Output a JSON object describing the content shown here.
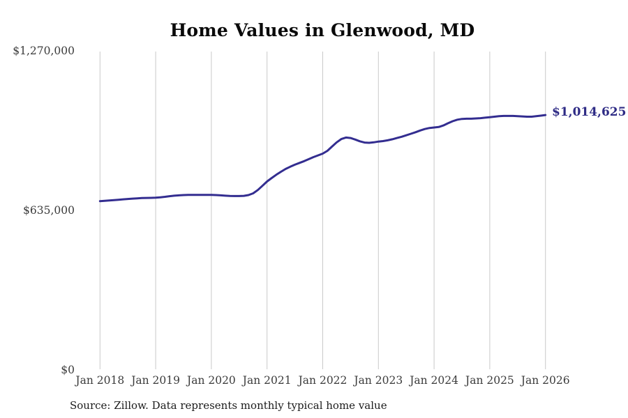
{
  "chart": {
    "title": "Home Values in Glenwood, MD",
    "source": "Source: Zillow. Data represents monthly typical home value",
    "end_label": "$1,014,625",
    "colors": {
      "line": "#332d90",
      "end_label": "#2e2b85",
      "gridline": "#c9c9c9",
      "axis_text": "#3b3b3b",
      "title_text": "#0a0a0a",
      "source_text": "#1b1b1b",
      "background": "#ffffff"
    }
  },
  "chart_data": {
    "type": "line",
    "title": "Home Values in Glenwood, MD",
    "xlabel": "",
    "ylabel": "",
    "ylim": [
      0,
      1270000
    ],
    "grid": "vertical-only",
    "legend": "none",
    "x_start": "Jan 2018",
    "x_end": "Jan 2026",
    "x_interval": "monthly",
    "x_tick_labels": [
      "Jan 2018",
      "Jan 2019",
      "Jan 2020",
      "Jan 2021",
      "Jan 2022",
      "Jan 2023",
      "Jan 2024",
      "Jan 2025",
      "Jan 2026"
    ],
    "y_ticks": [
      0,
      635000,
      1270000
    ],
    "y_tick_labels": [
      "$0",
      "$635,000",
      "$1,270,000"
    ],
    "end_value": 1014625,
    "end_value_label": "$1,014,625",
    "series": [
      {
        "name": "Monthly typical home value",
        "values": [
          672000,
          673000,
          674500,
          676000,
          677500,
          679000,
          680500,
          682000,
          683000,
          684000,
          684500,
          685000,
          685500,
          687000,
          689000,
          691500,
          693500,
          695000,
          696000,
          696500,
          696500,
          696500,
          696500,
          696500,
          696500,
          696000,
          695000,
          693500,
          692500,
          692000,
          692000,
          693000,
          696000,
          703000,
          716000,
          733000,
          750000,
          764000,
          777000,
          789000,
          800000,
          809000,
          817000,
          824000,
          831000,
          839000,
          847000,
          854000,
          861000,
          872000,
          889000,
          906000,
          919000,
          925000,
          923000,
          917000,
          910000,
          905000,
          904000,
          906000,
          909000,
          911000,
          914000,
          918000,
          923000,
          928000,
          934000,
          940000,
          946000,
          953000,
          959000,
          963000,
          965000,
          967000,
          973000,
          982000,
          990000,
          996000,
          999000,
          1000000,
          1000000,
          1001000,
          1002000,
          1004000,
          1006000,
          1008000,
          1010000,
          1011000,
          1011000,
          1011000,
          1010000,
          1009000,
          1008000,
          1008000,
          1010000,
          1012000,
          1014625
        ]
      }
    ]
  }
}
